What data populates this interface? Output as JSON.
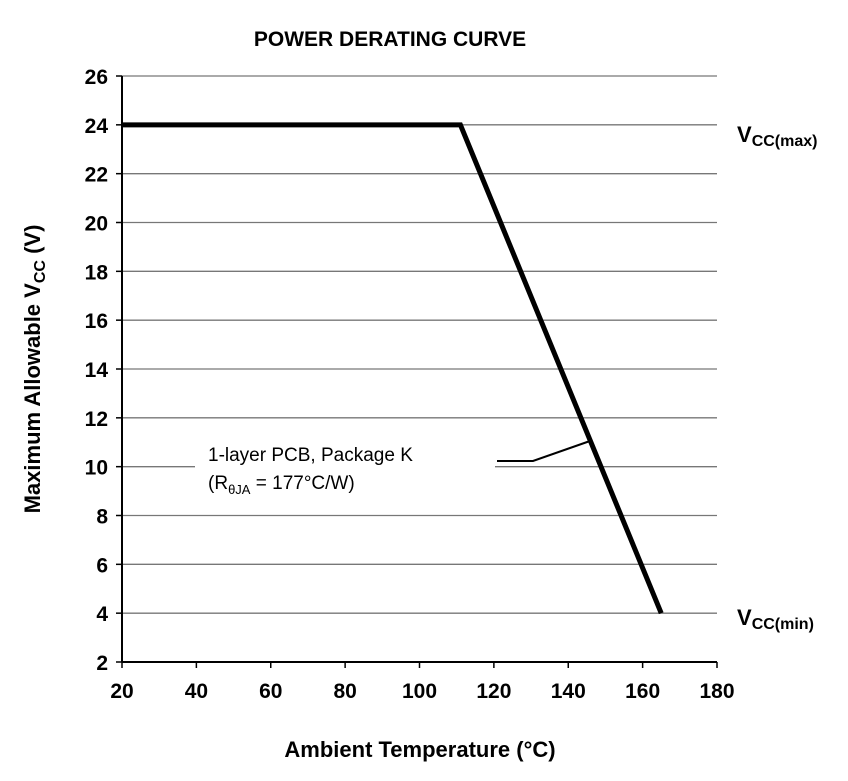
{
  "chart_data": {
    "type": "line",
    "title": "POWER DERATING CURVE",
    "xlabel": "Ambient Temperature (°C)",
    "ylabel": {
      "main": "Maximum Allowable V",
      "sub": "CC",
      "unit": " (V)"
    },
    "xlim": [
      20,
      180
    ],
    "ylim": [
      2,
      26
    ],
    "xticks": [
      20,
      40,
      60,
      80,
      100,
      120,
      140,
      160,
      180
    ],
    "yticks": [
      2,
      4,
      6,
      8,
      10,
      12,
      14,
      16,
      18,
      20,
      22,
      24,
      26
    ],
    "grid": "horizontal",
    "series": [
      {
        "x": [
          20,
          111,
          165
        ],
        "y": [
          24,
          24,
          4
        ],
        "color": "#000000"
      }
    ],
    "annotations": {
      "vcc_max": {
        "main": "V",
        "sub": "CC(max)"
      },
      "vcc_min": {
        "main": "V",
        "sub": "CC(min)"
      },
      "curve_label_line1": "1-layer PCB, Package K",
      "curve_label_line2": {
        "pre": "(R",
        "sub": "θJA",
        "post": " = 177°C/W)"
      }
    }
  }
}
